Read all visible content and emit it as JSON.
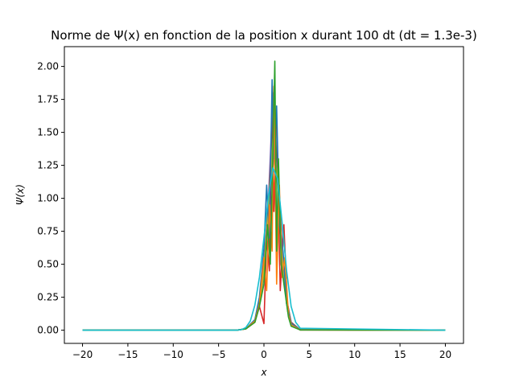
{
  "chart_data": {
    "type": "line",
    "title": "Norme de Ψ(x) en fonction de la position x durant 100 dt (dt = 1.3e-3)",
    "xlabel": "x",
    "ylabel": "Ψ(x)",
    "xlim": [
      -22,
      22
    ],
    "ylim": [
      -0.1,
      2.15
    ],
    "grid": false,
    "legend": "none",
    "xticks": [
      -20,
      -15,
      -10,
      -5,
      0,
      5,
      10,
      15,
      20
    ],
    "xtick_labels": [
      "−20",
      "−15",
      "−10",
      "−5",
      "0",
      "5",
      "10",
      "15",
      "20"
    ],
    "yticks": [
      0,
      0.25,
      0.5,
      0.75,
      1.0,
      1.25,
      1.5,
      1.75,
      2.0
    ],
    "ytick_labels": [
      "0.00",
      "0.25",
      "0.50",
      "0.75",
      "1.00",
      "1.25",
      "1.50",
      "1.75",
      "2.00"
    ],
    "series": [
      {
        "color": "#7f7f7f",
        "x": [
          -20,
          -3,
          -2,
          -1,
          -0.5,
          0,
          0.5,
          1,
          1.5,
          2,
          2.5,
          3,
          4,
          20
        ],
        "y": [
          0,
          0,
          0.01,
          0.07,
          0.18,
          0.42,
          0.85,
          1.35,
          1.1,
          0.55,
          0.2,
          0.05,
          0.003,
          0
        ]
      },
      {
        "color": "#e377c2",
        "x": [
          -20,
          -3,
          -2,
          -1,
          -0.5,
          0,
          0.5,
          1,
          1.5,
          2,
          2.5,
          3,
          4,
          20
        ],
        "y": [
          0,
          0,
          0.01,
          0.06,
          0.2,
          0.45,
          0.9,
          1.55,
          1.2,
          0.6,
          0.22,
          0.06,
          0.004,
          0
        ]
      },
      {
        "color": "#d62728",
        "x": [
          -20,
          -3,
          -2,
          -1,
          -0.5,
          0,
          0.3,
          0.6,
          0.9,
          1.1,
          1.4,
          1.8,
          2.2,
          2.6,
          3,
          4,
          20
        ],
        "y": [
          0,
          0,
          0.01,
          0.06,
          0.18,
          0.05,
          0.7,
          0.45,
          1.75,
          0.9,
          1.6,
          0.3,
          0.8,
          0.15,
          0.04,
          0.002,
          0
        ]
      },
      {
        "color": "#9467bd",
        "x": [
          -20,
          -3,
          -2,
          -1,
          -0.5,
          0,
          0.5,
          1,
          1.5,
          2,
          2.5,
          3,
          4,
          20
        ],
        "y": [
          0,
          0,
          0.01,
          0.06,
          0.2,
          0.5,
          1.0,
          1.8,
          1.3,
          0.65,
          0.24,
          0.06,
          0.003,
          0
        ]
      },
      {
        "color": "#8c564b",
        "x": [
          -20,
          -3,
          -2,
          -1,
          -0.5,
          0,
          0.5,
          1,
          1.5,
          2,
          2.5,
          3,
          4,
          20
        ],
        "y": [
          0,
          0,
          0.01,
          0.07,
          0.21,
          0.48,
          0.95,
          1.65,
          1.25,
          0.62,
          0.23,
          0.06,
          0.003,
          0
        ]
      },
      {
        "color": "#bcbd22",
        "x": [
          -20,
          -3,
          -2,
          -1,
          -0.5,
          0,
          0.5,
          1,
          1.5,
          2,
          2.5,
          3,
          4,
          20
        ],
        "y": [
          0,
          0,
          0.01,
          0.06,
          0.19,
          0.46,
          0.92,
          1.45,
          1.15,
          0.58,
          0.21,
          0.05,
          0.003,
          0
        ]
      },
      {
        "color": "#1f77b4",
        "x": [
          -20,
          -3,
          -2,
          -1,
          -0.5,
          0,
          0.3,
          0.6,
          0.9,
          1.1,
          1.4,
          1.7,
          2.1,
          2.5,
          3,
          4,
          20
        ],
        "y": [
          0,
          0,
          0.01,
          0.08,
          0.25,
          0.62,
          1.1,
          0.7,
          1.9,
          1.3,
          1.7,
          0.8,
          0.6,
          0.2,
          0.05,
          0.003,
          0
        ]
      },
      {
        "color": "#ff7f0e",
        "x": [
          -20,
          -3,
          -2,
          -1,
          -0.5,
          0,
          0.3,
          0.6,
          0.9,
          1.1,
          1.4,
          1.7,
          2.0,
          2.3,
          2.7,
          3,
          4,
          20
        ],
        "y": [
          0,
          0,
          0.01,
          0.07,
          0.2,
          0.55,
          0.3,
          0.95,
          0.6,
          1.85,
          0.35,
          1.1,
          0.4,
          0.55,
          0.12,
          0.04,
          0.002,
          0
        ]
      },
      {
        "color": "#2ca02c",
        "x": [
          -20,
          -3,
          -2,
          -1,
          -0.5,
          0,
          0.4,
          0.7,
          1.0,
          1.2,
          1.4,
          1.6,
          1.9,
          2.3,
          2.7,
          3,
          4,
          20
        ],
        "y": [
          0,
          0,
          0.01,
          0.06,
          0.18,
          0.35,
          0.8,
          0.5,
          1.4,
          2.04,
          0.6,
          1.3,
          0.5,
          0.3,
          0.1,
          0.03,
          0.002,
          0
        ]
      },
      {
        "color": "#17becf",
        "x": [
          -20,
          -3,
          -2.5,
          -2,
          -1.5,
          -1,
          -0.5,
          0,
          0.5,
          1,
          1.5,
          2,
          2.5,
          3,
          3.5,
          4,
          20
        ],
        "y": [
          0,
          0,
          0.004,
          0.02,
          0.07,
          0.19,
          0.4,
          0.7,
          1.02,
          1.23,
          1.15,
          0.82,
          0.45,
          0.18,
          0.06,
          0.015,
          0
        ]
      }
    ]
  }
}
